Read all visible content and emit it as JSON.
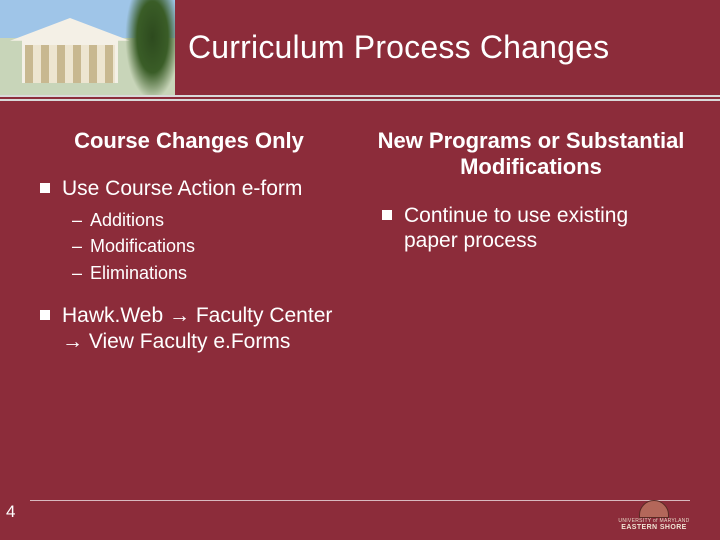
{
  "colors": {
    "background": "#8c2c3a",
    "text": "#ffffff",
    "rule": "#d9d9d9",
    "footer_rule": "#d9b9bf"
  },
  "typography": {
    "title_fontsize": 32,
    "heading_fontsize": 22,
    "bullet_lvl1_fontsize": 21,
    "bullet_lvl2_fontsize": 18,
    "font_family": "Arial"
  },
  "header": {
    "title": "Curriculum Process Changes"
  },
  "columns": {
    "left": {
      "heading": "Course Changes Only",
      "items": [
        {
          "text": "Use Course Action e-form",
          "sub": [
            "Additions",
            "Modifications",
            "Eliminations"
          ]
        },
        {
          "text": "Hawk.Web → Faculty Center → View Faculty e.Forms",
          "sub": []
        }
      ]
    },
    "right": {
      "heading": "New Programs or Substantial Modifications",
      "items": [
        {
          "text": "Continue to use existing paper process",
          "sub": []
        }
      ]
    }
  },
  "footer": {
    "page_number": "4",
    "logo_line1": "UNIVERSITY of MARYLAND",
    "logo_line2": "EASTERN SHORE"
  }
}
